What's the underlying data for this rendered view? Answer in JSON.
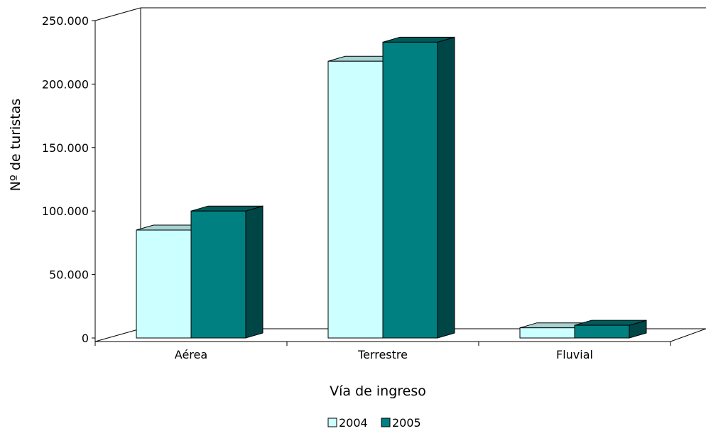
{
  "chart_data": {
    "type": "bar",
    "categories": [
      "Aérea",
      "Terrestre",
      "Fluvial"
    ],
    "series": [
      {
        "name": "2004",
        "values": [
          85000,
          218000,
          8000
        ]
      },
      {
        "name": "2005",
        "values": [
          100000,
          233000,
          10000
        ]
      }
    ],
    "xlabel": "Vía de ingreso",
    "ylabel": "Nº de turistas",
    "ylim": [
      0,
      250000
    ],
    "yticks": [
      0,
      50000,
      100000,
      150000,
      200000,
      250000
    ],
    "ytick_labels": [
      "0",
      "50.000",
      "100.000",
      "150.000",
      "200.000",
      "250.000"
    ],
    "grid": false,
    "legend_position": "bottom",
    "style": "3d-column",
    "colors": {
      "2004": {
        "front": "#ccffff",
        "top": "#a6d2d2",
        "side": "#8fb8b8"
      },
      "2005": {
        "front": "#008080",
        "top": "#005c5c",
        "side": "#004646"
      }
    }
  }
}
